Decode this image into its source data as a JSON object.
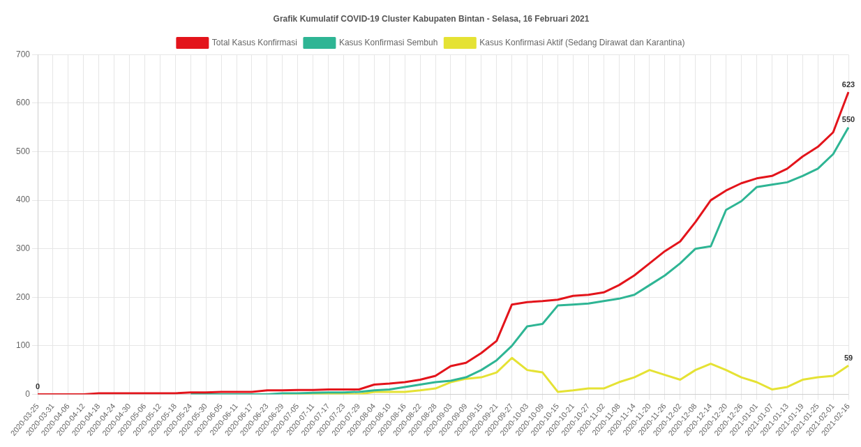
{
  "chart_data": {
    "type": "line",
    "title": "Grafik Kumulatif COVID-19 Cluster Kabupaten Bintan - Selasa, 16 Februari 2021",
    "categories": [
      "2020-03-25",
      "2020-03-31",
      "2020-04-06",
      "2020-04-12",
      "2020-04-18",
      "2020-04-24",
      "2020-04-30",
      "2020-05-06",
      "2020-05-12",
      "2020-05-18",
      "2020-05-24",
      "2020-05-30",
      "2020-06-05",
      "2020-06-11",
      "2020-06-17",
      "2020-06-23",
      "2020-06-29",
      "2020-07-05",
      "2020-07-11",
      "2020-07-17",
      "2020-07-23",
      "2020-07-29",
      "2020-08-04",
      "2020-08-10",
      "2020-08-16",
      "2020-08-22",
      "2020-08-28",
      "2020-09-03",
      "2020-09-09",
      "2020-09-15",
      "2020-09-21",
      "2020-09-27",
      "2020-10-03",
      "2020-10-09",
      "2020-10-15",
      "2020-10-21",
      "2020-10-27",
      "2020-11-02",
      "2020-11-08",
      "2020-11-14",
      "2020-11-20",
      "2020-11-26",
      "2020-12-02",
      "2020-12-08",
      "2020-12-14",
      "2020-12-20",
      "2020-12-26",
      "2021-01-01",
      "2021-01-07",
      "2021-01-13",
      "2021-01-19",
      "2021-01-25",
      "2021-02-01",
      "2021-02-16"
    ],
    "series": [
      {
        "name": "Total Kasus Konfirmasi",
        "color": "#e3141b",
        "values": [
          0,
          0,
          0,
          0,
          2,
          2,
          2,
          2,
          2,
          2,
          4,
          4,
          5,
          5,
          5,
          8,
          8,
          9,
          9,
          10,
          10,
          10,
          20,
          22,
          25,
          30,
          38,
          58,
          65,
          85,
          110,
          185,
          190,
          192,
          195,
          203,
          205,
          210,
          225,
          245,
          270,
          295,
          315,
          355,
          400,
          420,
          435,
          445,
          450,
          465,
          490,
          510,
          540,
          623
        ]
      },
      {
        "name": "Kasus Konfirmasi Sembuh",
        "color": "#2eb594",
        "values": [
          null,
          null,
          null,
          null,
          null,
          null,
          null,
          null,
          null,
          null,
          0,
          0,
          0,
          0,
          0,
          0,
          2,
          2,
          3,
          4,
          4,
          5,
          8,
          10,
          15,
          20,
          25,
          28,
          35,
          50,
          70,
          100,
          140,
          145,
          183,
          185,
          187,
          192,
          197,
          205,
          225,
          245,
          270,
          300,
          305,
          380,
          398,
          427,
          432,
          437,
          450,
          465,
          495,
          550
        ]
      },
      {
        "name": "Kasus Konfirmasi Aktif (Sedang Dirawat dan Karantina)",
        "color": "#e5e234",
        "values": [
          null,
          null,
          null,
          null,
          null,
          null,
          null,
          null,
          null,
          null,
          null,
          null,
          null,
          null,
          null,
          null,
          0,
          0,
          0,
          0,
          0,
          0,
          5,
          5,
          5,
          8,
          12,
          25,
          32,
          35,
          45,
          75,
          50,
          45,
          5,
          8,
          12,
          12,
          25,
          35,
          50,
          40,
          30,
          50,
          63,
          50,
          35,
          25,
          10,
          15,
          30,
          35,
          38,
          59
        ]
      }
    ],
    "annotations": [
      {
        "text": "0",
        "x": "2020-03-25",
        "y": 0
      },
      {
        "text": "623",
        "x": "2021-02-16",
        "y": 623
      },
      {
        "text": "550",
        "x": "2021-02-16",
        "y": 550
      },
      {
        "text": "59",
        "x": "2021-02-16",
        "y": 59
      }
    ],
    "ylim": [
      0,
      700
    ],
    "yticks": [
      0,
      100,
      200,
      300,
      400,
      500,
      600,
      700
    ],
    "grid": true,
    "legend": "top"
  }
}
